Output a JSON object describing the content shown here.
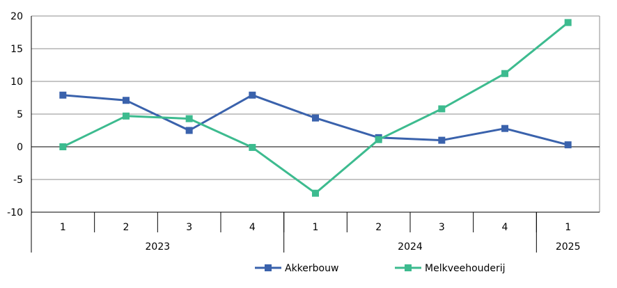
{
  "chart_data": {
    "type": "line",
    "quarters": [
      "1",
      "2",
      "3",
      "4",
      "1",
      "2",
      "3",
      "4",
      "1"
    ],
    "years": [
      {
        "label": "2023",
        "count": 4
      },
      {
        "label": "2024",
        "count": 4
      },
      {
        "label": "2025",
        "count": 1
      }
    ],
    "ylim": [
      -10,
      20
    ],
    "yticks": [
      -10,
      -5,
      0,
      5,
      10,
      15,
      20
    ],
    "grid": true,
    "legend_position": "bottom",
    "series": [
      {
        "name": "Akkerbouw",
        "color": "#3a62ac",
        "values": [
          7.9,
          7.1,
          2.5,
          7.9,
          4.4,
          1.4,
          1.0,
          2.8,
          0.3
        ]
      },
      {
        "name": "Melkveehouderij",
        "color": "#3dbb8f",
        "values": [
          0.0,
          4.7,
          4.3,
          -0.1,
          -7.1,
          1.1,
          5.8,
          11.2,
          19.0
        ]
      }
    ]
  }
}
